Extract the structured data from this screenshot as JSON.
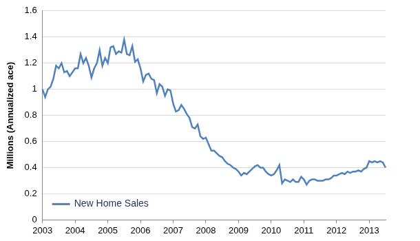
{
  "chart_data": {
    "type": "line",
    "y_label": "Millions (Annualized ace)",
    "categories": [
      "2003",
      null,
      null,
      null,
      null,
      null,
      null,
      null,
      null,
      null,
      null,
      null,
      "2004",
      null,
      null,
      null,
      null,
      null,
      null,
      null,
      null,
      null,
      null,
      null,
      "2005",
      null,
      null,
      null,
      null,
      null,
      null,
      null,
      null,
      null,
      null,
      null,
      "2006",
      null,
      null,
      null,
      null,
      null,
      null,
      null,
      null,
      null,
      null,
      null,
      "2007",
      null,
      null,
      null,
      null,
      null,
      null,
      null,
      null,
      null,
      null,
      null,
      "2008",
      null,
      null,
      null,
      null,
      null,
      null,
      null,
      null,
      null,
      null,
      null,
      "2009",
      null,
      null,
      null,
      null,
      null,
      null,
      null,
      null,
      null,
      null,
      null,
      "2010",
      null,
      null,
      null,
      null,
      null,
      null,
      null,
      null,
      null,
      null,
      null,
      "2011",
      null,
      null,
      null,
      null,
      null,
      null,
      null,
      null,
      null,
      null,
      null,
      "2012",
      null,
      null,
      null,
      null,
      null,
      null,
      null,
      null,
      null,
      null,
      null,
      "2013",
      null,
      null,
      null,
      null,
      null,
      null
    ],
    "series": [
      {
        "name": "New Home Sales",
        "color": "#4f81bd",
        "values": [
          1.0,
          0.94,
          1.0,
          1.02,
          1.08,
          1.18,
          1.16,
          1.2,
          1.13,
          1.14,
          1.1,
          1.13,
          1.16,
          1.16,
          1.27,
          1.2,
          1.24,
          1.18,
          1.09,
          1.16,
          1.2,
          1.3,
          1.18,
          1.24,
          1.2,
          1.32,
          1.33,
          1.27,
          1.29,
          1.28,
          1.38,
          1.27,
          1.26,
          1.33,
          1.21,
          1.23,
          1.16,
          1.06,
          1.11,
          1.12,
          1.08,
          1.07,
          0.97,
          1.04,
          1.02,
          0.95,
          1.0,
          0.99,
          0.89,
          0.83,
          0.84,
          0.88,
          0.85,
          0.81,
          0.78,
          0.71,
          0.7,
          0.73,
          0.64,
          0.62,
          0.63,
          0.58,
          0.53,
          0.53,
          0.51,
          0.49,
          0.48,
          0.45,
          0.43,
          0.42,
          0.4,
          0.39,
          0.37,
          0.34,
          0.36,
          0.35,
          0.37,
          0.39,
          0.41,
          0.42,
          0.4,
          0.4,
          0.37,
          0.35,
          0.34,
          0.35,
          0.38,
          0.42,
          0.28,
          0.31,
          0.3,
          0.29,
          0.31,
          0.29,
          0.29,
          0.33,
          0.31,
          0.27,
          0.3,
          0.31,
          0.31,
          0.3,
          0.3,
          0.3,
          0.31,
          0.31,
          0.32,
          0.34,
          0.34,
          0.35,
          0.36,
          0.35,
          0.37,
          0.36,
          0.37,
          0.37,
          0.38,
          0.37,
          0.39,
          0.4,
          0.45,
          0.44,
          0.45,
          0.44,
          0.45,
          0.44,
          0.4
        ]
      }
    ],
    "ylim": [
      0,
      1.6
    ],
    "yticks": [
      0,
      0.2,
      0.4,
      0.6,
      0.8,
      1,
      1.2,
      1.4,
      1.6
    ],
    "grid": true,
    "legend": "lower left"
  }
}
